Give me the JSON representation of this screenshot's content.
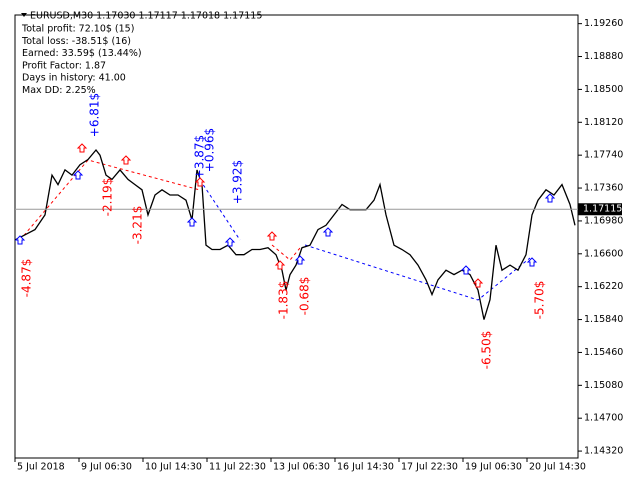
{
  "chart_data": {
    "type": "line",
    "title": "EURUSD,M30  1.17030 1.17117 1.17018 1.17115",
    "stats": [
      "Total profit: 72.10$ (15)",
      "Total loss: -38.51$ (16)",
      "Earned: 33.59$ (13.44%)",
      "Profit Factor: 1.87",
      "Days in history: 41.00",
      "Max DD: 2.25%"
    ],
    "x": [
      0,
      10,
      20,
      30,
      37,
      43,
      50,
      57,
      65,
      73,
      81,
      85,
      91,
      97,
      105,
      113,
      120,
      127,
      133,
      140,
      147,
      155,
      163,
      171,
      177,
      182,
      187,
      191,
      197,
      205,
      213,
      221,
      229,
      237,
      245,
      253,
      261,
      267,
      271,
      275,
      281,
      287,
      295,
      303,
      311,
      319,
      327,
      335,
      343,
      351,
      359,
      365,
      371,
      379,
      387,
      395,
      403,
      411,
      417,
      423,
      431,
      439,
      447,
      455,
      463,
      469,
      475,
      481,
      487,
      495,
      503,
      511,
      517,
      523,
      531,
      539,
      547,
      555,
      560
    ],
    "series": [
      {
        "name": "EURUSD",
        "color": "#000000",
        "values": [
          1.1676,
          1.1682,
          1.1688,
          1.1705,
          1.1751,
          1.174,
          1.1757,
          1.1751,
          1.1763,
          1.1769,
          1.178,
          1.1774,
          1.1751,
          1.1746,
          1.1757,
          1.1746,
          1.174,
          1.1734,
          1.1705,
          1.1728,
          1.1734,
          1.1728,
          1.1728,
          1.1722,
          1.1699,
          1.1757,
          1.174,
          1.167,
          1.1665,
          1.1665,
          1.167,
          1.1659,
          1.1659,
          1.1665,
          1.1665,
          1.1667,
          1.1659,
          1.1641,
          1.1618,
          1.1636,
          1.1647,
          1.1667,
          1.167,
          1.1688,
          1.1693,
          1.1705,
          1.1717,
          1.1711,
          1.1711,
          1.1711,
          1.1722,
          1.174,
          1.1705,
          1.167,
          1.1665,
          1.1659,
          1.1647,
          1.163,
          1.1613,
          1.163,
          1.1641,
          1.1636,
          1.1641,
          1.1636,
          1.1618,
          1.1584,
          1.1607,
          1.167,
          1.1641,
          1.1647,
          1.1641,
          1.1659,
          1.1705,
          1.1722,
          1.1734,
          1.1728,
          1.174,
          1.1717,
          1.1693
        ]
      }
    ],
    "xlim": [
      0,
      563
    ],
    "ylim": [
      1.1424,
      1.1936
    ],
    "xticks": [
      {
        "value": 0,
        "label": "5 Jul 2018"
      },
      {
        "value": 64,
        "label": "9 Jul 06:30"
      },
      {
        "value": 128,
        "label": "10 Jul 14:30"
      },
      {
        "value": 192,
        "label": "11 Jul 22:30"
      },
      {
        "value": 256,
        "label": "13 Jul 06:30"
      },
      {
        "value": 320,
        "label": "16 Jul 14:30"
      },
      {
        "value": 384,
        "label": "17 Jul 22:30"
      },
      {
        "value": 448,
        "label": "19 Jul 06:30"
      },
      {
        "value": 512,
        "label": "20 Jul 14:30"
      }
    ],
    "yticks": [
      {
        "value": 1.1926,
        "label": "1.19260"
      },
      {
        "value": 1.1888,
        "label": "1.18880"
      },
      {
        "value": 1.185,
        "label": "1.18500"
      },
      {
        "value": 1.1812,
        "label": "1.18120"
      },
      {
        "value": 1.1774,
        "label": "1.17740"
      },
      {
        "value": 1.1736,
        "label": "1.17360"
      },
      {
        "value": 1.1698,
        "label": "1.16980"
      },
      {
        "value": 1.166,
        "label": "1.16600"
      },
      {
        "value": 1.1622,
        "label": "1.16220"
      },
      {
        "value": 1.1584,
        "label": "1.15840"
      },
      {
        "value": 1.1546,
        "label": "1.15460"
      },
      {
        "value": 1.1508,
        "label": "1.15080"
      },
      {
        "value": 1.147,
        "label": "1.14700"
      },
      {
        "value": 1.1432,
        "label": "1.14320"
      }
    ],
    "current_price": 1.17115,
    "annotations": [
      {
        "text": "-4.87$",
        "color": "#ff0000"
      },
      {
        "text": "+6.81$",
        "color": "#0000ff"
      },
      {
        "text": "-2.19$",
        "color": "#ff0000"
      },
      {
        "text": "-3.21$",
        "color": "#ff0000"
      },
      {
        "text": "+3.87$",
        "color": "#0000ff"
      },
      {
        "text": "+0.96$",
        "color": "#0000ff"
      },
      {
        "text": "+3.92$",
        "color": "#0000ff"
      },
      {
        "text": "-1.83$",
        "color": "#ff0000"
      },
      {
        "text": "-0.68$",
        "color": "#ff0000"
      },
      {
        "text": "-6.50$",
        "color": "#ff0000"
      },
      {
        "text": "-5.70$",
        "color": "#ff0000"
      }
    ]
  }
}
